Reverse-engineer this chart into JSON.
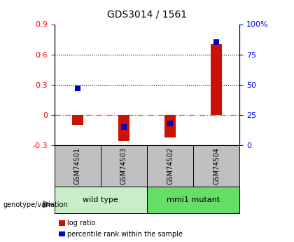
{
  "title": "GDS3014 / 1561",
  "samples": [
    "GSM74501",
    "GSM74503",
    "GSM74502",
    "GSM74504"
  ],
  "log_ratios": [
    -0.1,
    -0.255,
    -0.22,
    0.7
  ],
  "percentile_ranks": [
    47,
    15,
    18,
    85
  ],
  "groups": [
    {
      "label": "wild type",
      "samples": [
        0,
        1
      ],
      "color": "#c8eec8"
    },
    {
      "label": "mmi1 mutant",
      "samples": [
        2,
        3
      ],
      "color": "#66dd66"
    }
  ],
  "left_ylim": [
    -0.3,
    0.9
  ],
  "right_ylim": [
    0,
    100
  ],
  "left_yticks": [
    -0.3,
    0.0,
    0.3,
    0.6,
    0.9
  ],
  "right_yticks": [
    0,
    25,
    50,
    75,
    100
  ],
  "right_yticklabels": [
    "0",
    "25",
    "50",
    "75",
    "100%"
  ],
  "hlines": [
    0.3,
    0.6
  ],
  "bar_color": "#cc1100",
  "dot_color": "#0000cc",
  "bar_width": 0.25,
  "dot_size": 40,
  "genotype_label": "genotype/variation",
  "legend_items": [
    {
      "label": "log ratio",
      "color": "#cc1100"
    },
    {
      "label": "percentile rank within the sample",
      "color": "#0000cc"
    }
  ],
  "sample_box_color": "#c0c0c0",
  "zero_line_color": "#cc1100",
  "zero_line_alpha": 0.6
}
